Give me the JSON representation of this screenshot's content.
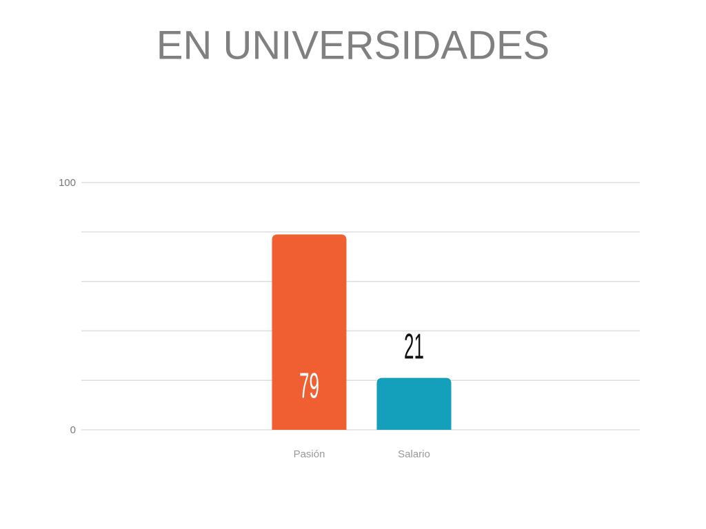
{
  "chart_data": {
    "type": "bar",
    "title": "EN UNIVERSIDADES",
    "categories": [
      "Pasión",
      "Salario"
    ],
    "values": [
      79,
      21
    ],
    "colors": [
      "#f05f32",
      "#149fba"
    ],
    "ylim": [
      0,
      100
    ],
    "yticks": [
      0,
      100
    ],
    "ygrid": [
      0,
      20,
      40,
      60,
      80,
      100
    ],
    "grid": true
  }
}
